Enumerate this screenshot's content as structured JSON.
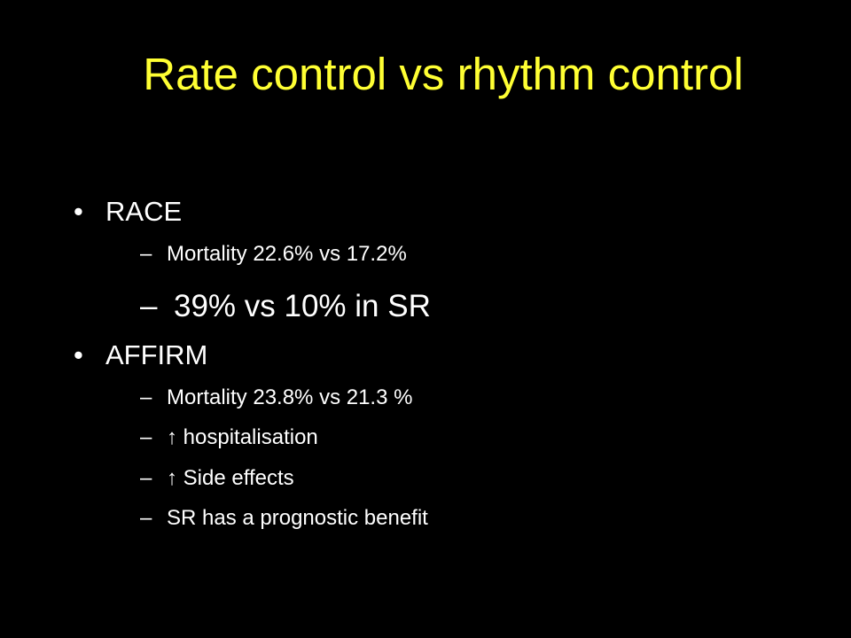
{
  "slide": {
    "title": "Rate control vs rhythm control",
    "title_color": "#FFFF33",
    "text_color": "#FFFFFF",
    "background": "#000000",
    "bullet_glyph": "•",
    "sub_glyph": "–",
    "sections": [
      {
        "heading": "RACE",
        "items": [
          "Mortality 22.6% vs 17.2%",
          "39% vs 10% in SR"
        ]
      },
      {
        "heading": "AFFIRM",
        "items": [
          "Mortality 23.8% vs 21.3 %",
          "↑ hospitalisation",
          "↑ Side effects",
          "SR has a prognostic benefit"
        ]
      }
    ]
  }
}
